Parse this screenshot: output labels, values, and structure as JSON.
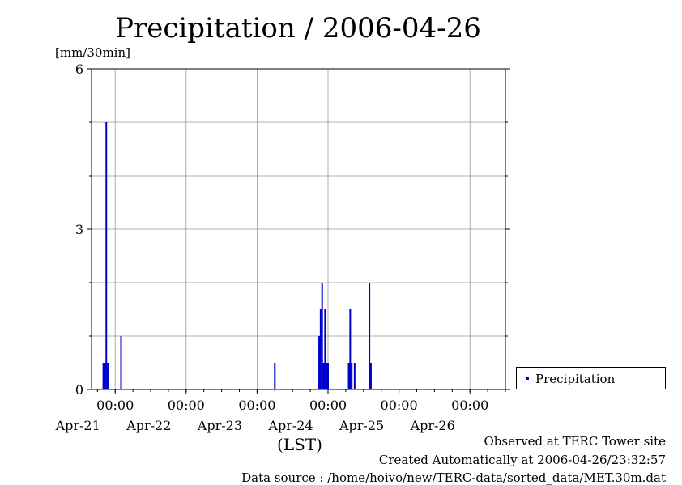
{
  "chart_data": {
    "type": "bar",
    "title": "Precipitation / 2006-04-26",
    "ylabel": "[mm/30min]",
    "xlabel": "(LST)",
    "ylim": [
      0,
      6
    ],
    "xlim": [
      "2006-04-20T16:00",
      "2006-04-26T12:00"
    ],
    "y_ticks": [
      "0",
      "3",
      "6"
    ],
    "x_ticks": [
      {
        "time": "00:00",
        "date": "Apr-21"
      },
      {
        "time": "00:00",
        "date": "Apr-22"
      },
      {
        "time": "00:00",
        "date": "Apr-23"
      },
      {
        "time": "00:00",
        "date": "Apr-24"
      },
      {
        "time": "00:00",
        "date": "Apr-25"
      },
      {
        "time": "00:00",
        "date": "Apr-26"
      }
    ],
    "grid": true,
    "legend_position": "right",
    "series": [
      {
        "name": "Precipitation",
        "color": "#0000cc",
        "points": [
          {
            "t": "2006-04-20T20:00",
            "v": 0.5
          },
          {
            "t": "2006-04-20T20:30",
            "v": 0.5
          },
          {
            "t": "2006-04-20T21:00",
            "v": 5.0
          },
          {
            "t": "2006-04-20T21:30",
            "v": 0.5
          },
          {
            "t": "2006-04-21T02:00",
            "v": 1.0
          },
          {
            "t": "2006-04-23T06:00",
            "v": 0.5
          },
          {
            "t": "2006-04-23T21:00",
            "v": 1.0
          },
          {
            "t": "2006-04-23T21:30",
            "v": 1.5
          },
          {
            "t": "2006-04-23T22:00",
            "v": 2.0
          },
          {
            "t": "2006-04-23T22:30",
            "v": 0.5
          },
          {
            "t": "2006-04-23T23:00",
            "v": 1.5
          },
          {
            "t": "2006-04-23T23:30",
            "v": 0.5
          },
          {
            "t": "2006-04-24T00:00",
            "v": 0.5
          },
          {
            "t": "2006-04-24T07:00",
            "v": 0.5
          },
          {
            "t": "2006-04-24T07:30",
            "v": 1.5
          },
          {
            "t": "2006-04-24T08:00",
            "v": 0.5
          },
          {
            "t": "2006-04-24T09:00",
            "v": 0.5
          },
          {
            "t": "2006-04-24T14:00",
            "v": 2.0
          },
          {
            "t": "2006-04-24T14:30",
            "v": 0.5
          }
        ]
      }
    ]
  },
  "footer": {
    "observed": "Observed at TERC Tower site",
    "created": "Created Automatically at 2006-04-26/23:32:57",
    "source": "Data source : /home/hoivo/new/TERC-data/sorted_data/MET.30m.dat"
  }
}
